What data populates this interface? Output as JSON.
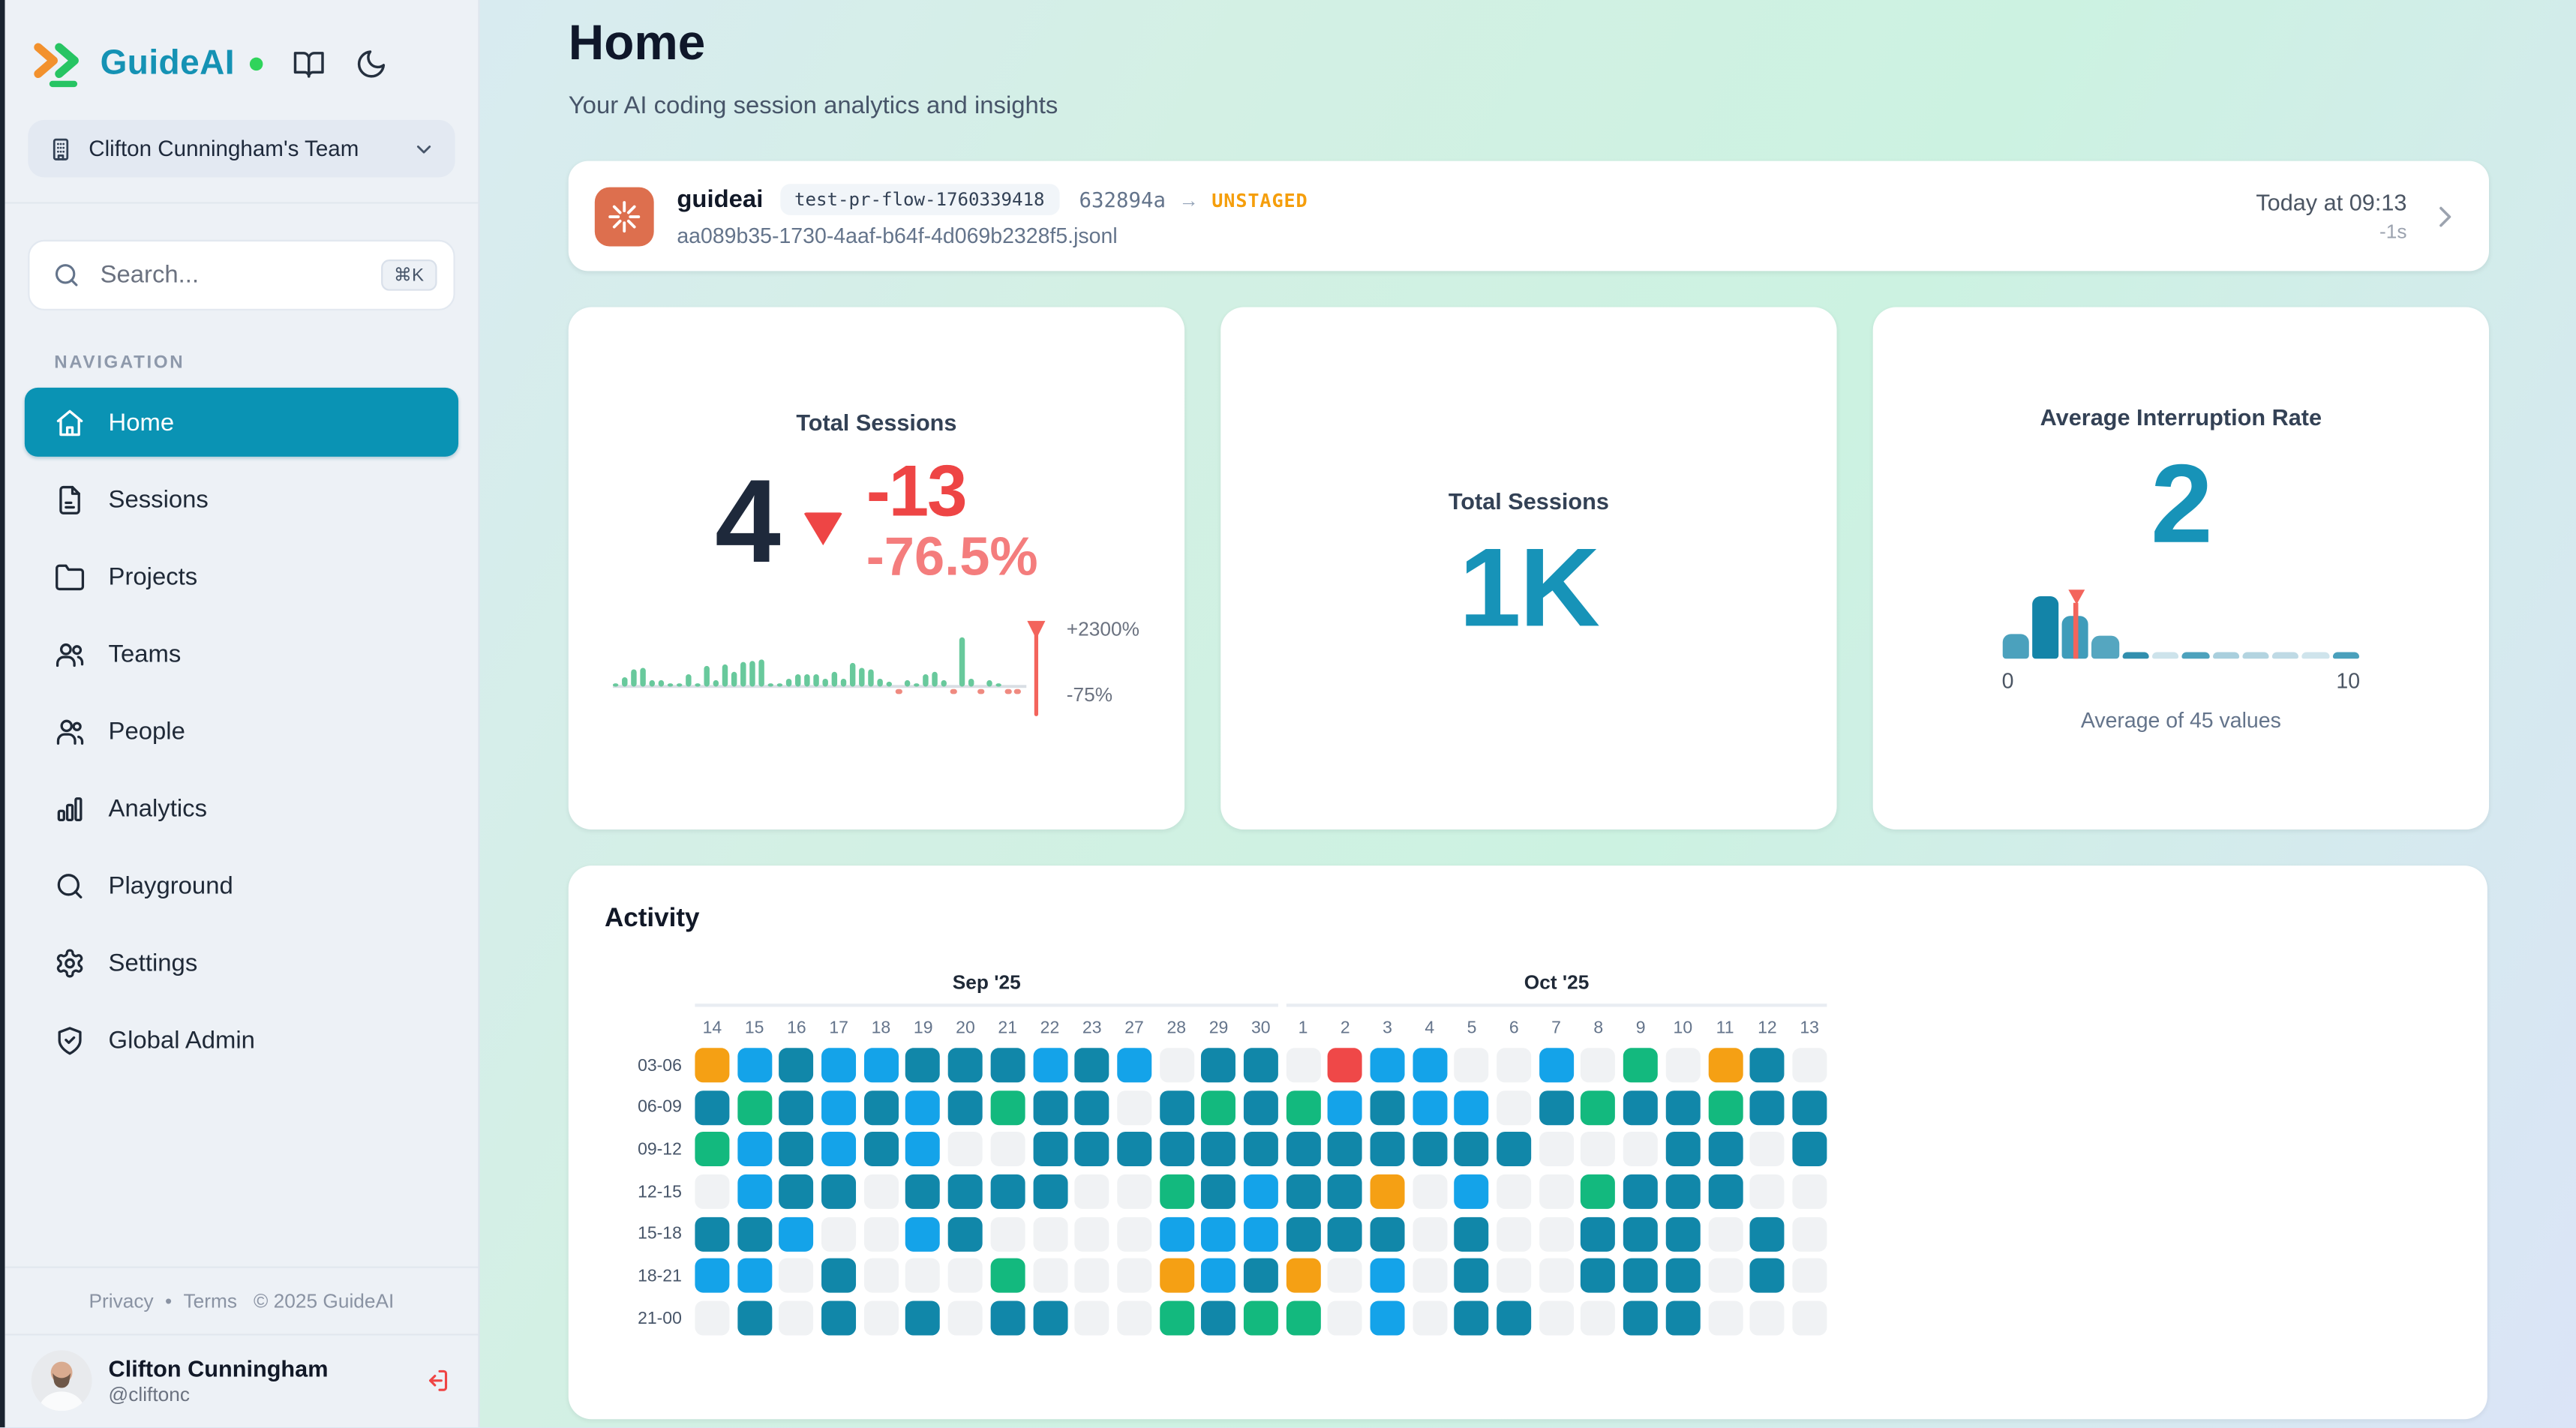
{
  "brand": {
    "name": "GuideAI",
    "accent_color": "#1592b4",
    "status_dot_color": "#2fd45b"
  },
  "sidebar": {
    "team_selector": {
      "label": "Clifton Cunningham's Team"
    },
    "search": {
      "placeholder": "Search...",
      "shortcut": "⌘K"
    },
    "nav_section_label": "NAVIGATION",
    "items": [
      {
        "label": "Home",
        "icon": "home",
        "active": true
      },
      {
        "label": "Sessions",
        "icon": "file-text",
        "active": false
      },
      {
        "label": "Projects",
        "icon": "folder",
        "active": false
      },
      {
        "label": "Teams",
        "icon": "users",
        "active": false
      },
      {
        "label": "People",
        "icon": "people",
        "active": false
      },
      {
        "label": "Analytics",
        "icon": "bar-chart",
        "active": false
      },
      {
        "label": "Playground",
        "icon": "search",
        "active": false
      },
      {
        "label": "Settings",
        "icon": "settings",
        "active": false
      },
      {
        "label": "Global Admin",
        "icon": "shield-check",
        "active": false
      }
    ],
    "footer_links": {
      "privacy": "Privacy",
      "dot": "•",
      "terms": "Terms",
      "copyright": "© 2025 GuideAI"
    },
    "user": {
      "name": "Clifton Cunningham",
      "handle": "@cliftonc"
    }
  },
  "header": {
    "title": "Home",
    "subtitle": "Your AI coding session analytics and insights"
  },
  "session_bar": {
    "app": "guideai",
    "tag": "test-pr-flow-1760339418",
    "commit": "632894a",
    "arrow": "→",
    "status": "UNSTAGED",
    "file": "aa089b35-1730-4aaf-b64f-4d069b2328f5.jsonl",
    "time": "Today at 09:13",
    "duration": "-1s"
  },
  "cards": {
    "trend": {
      "title": "Total Sessions",
      "value": "4",
      "delta": "-13",
      "delta_pct": "-76.5%"
    },
    "total": {
      "title": "Total Sessions",
      "value": "1K"
    },
    "interruption": {
      "title": "Average Interruption Rate",
      "value": "2",
      "axis_min": "0",
      "axis_max": "10",
      "caption": "Average of 45 values"
    }
  },
  "activity_title": "Activity",
  "chart_data": [
    {
      "type": "bar",
      "name": "total-sessions-sparkline",
      "title": "Total Sessions daily trend",
      "values": [
        0.05,
        0.19,
        0.35,
        0.38,
        0.13,
        0.13,
        0.05,
        0.05,
        0.25,
        0.06,
        0.42,
        0.13,
        0.45,
        0.3,
        0.5,
        0.52,
        0.55,
        0.05,
        0.05,
        0.16,
        0.25,
        0.25,
        0.25,
        0.16,
        0.3,
        0.16,
        0.48,
        0.38,
        0.35,
        0.16,
        0.1,
        -0.06,
        0.13,
        0.05,
        0.25,
        0.3,
        0.13,
        -0.06,
        1.0,
        0.16,
        -0.06,
        0.13,
        0.05,
        -0.06,
        -0.06
      ],
      "positive_color": "#68c99c",
      "negative_color": "#ef8a80",
      "baseline_color": "#d9dee4",
      "marker_color": "#f3645c",
      "marker_top_label": "+2300%",
      "marker_bottom_label": "-75%"
    },
    {
      "type": "bar",
      "name": "interruption-rate-histogram",
      "title": "Average Interruption Rate distribution",
      "xlim": [
        0,
        10
      ],
      "values": [
        0.41,
        1.0,
        0.7,
        0.37,
        0.12,
        0.1,
        0.12,
        0.1,
        0.1,
        0.1,
        0.1,
        0.12
      ],
      "colors": [
        "#4ba1bd",
        "#1384a8",
        "#3f9cba",
        "#55a6c0",
        "#318fae",
        "#cde3eb",
        "#4da2bd",
        "#a9cfdd",
        "#b3d4e0",
        "#bfdae5",
        "#cfe4ec",
        "#4aa0bc"
      ],
      "marker_index": 2,
      "marker_color": "#f3645c",
      "caption": "Average of 45 values"
    },
    {
      "type": "heatmap",
      "name": "activity-heatmap",
      "title": "Activity by 3-hour block",
      "months": [
        {
          "label": "Sep '25",
          "cols": 14
        },
        {
          "label": "Oct '25",
          "cols": 13
        }
      ],
      "columns": [
        "14",
        "15",
        "16",
        "17",
        "18",
        "19",
        "20",
        "21",
        "22",
        "23",
        "27",
        "28",
        "29",
        "30",
        "1",
        "2",
        "3",
        "4",
        "5",
        "6",
        "7",
        "8",
        "9",
        "10",
        "11",
        "12",
        "13"
      ],
      "rows": [
        {
          "label": "03-06",
          "cells": "obtbbtttbtbetterbbeebegeote"
        },
        {
          "label": "06-09",
          "cells": "tgtbtbtgttetgtgbtbbetgttgtt"
        },
        {
          "label": "09-12",
          "cells": "gbtbtbeetttttttttttteeettet"
        },
        {
          "label": "12-15",
          "cells": "ebttetttteegtbttoebeegtttee"
        },
        {
          "label": "15-18",
          "cells": "ttbeebteeeebbbttteteetttete"
        },
        {
          "label": "18-21",
          "cells": "bbeteeegeeeobtoebeteetttete"
        },
        {
          "label": "21-00",
          "cells": "etetetetteegtggebetteetteee"
        }
      ],
      "palette": {
        "t": "#1187a9",
        "b": "#14a3e9",
        "g": "#13b97e",
        "o": "#f5a014",
        "r": "#ef4848",
        "e": "#f0f2f4"
      }
    }
  ]
}
